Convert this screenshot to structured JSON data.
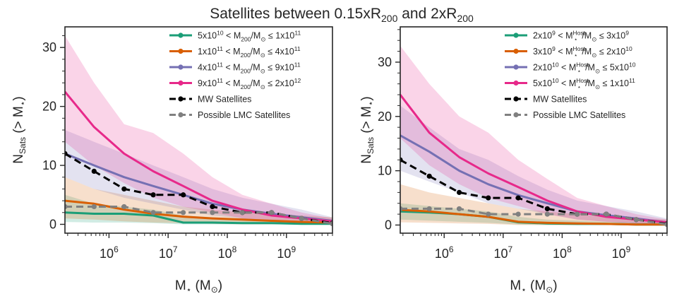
{
  "suptitle": {
    "main": "Satellites between 0.15xR",
    "sub1": "200",
    "mid": " and 2xR",
    "sub2": "200"
  },
  "colors": {
    "green": "#1b9e77",
    "orange": "#d95f02",
    "purple": "#7570b3",
    "pink": "#e7298a",
    "black": "#000000",
    "grey": "#808080"
  },
  "chart_data": [
    {
      "type": "line",
      "panel": "left",
      "xscale": "log",
      "xlim": [
        180000,
        6000000000
      ],
      "ylim": [
        -1.5,
        33.5
      ],
      "xticks": [
        {
          "value": 1000000,
          "base": "10",
          "exp": "6"
        },
        {
          "value": 10000000,
          "base": "10",
          "exp": "7"
        },
        {
          "value": 100000000,
          "base": "10",
          "exp": "8"
        },
        {
          "value": 1000000000,
          "base": "10",
          "exp": "9"
        }
      ],
      "yticks": [
        0,
        10,
        20,
        30
      ],
      "xlabel": {
        "pre": "M",
        "sub": "⋆",
        "post": " (M",
        "sub2": "⊙",
        "post2": ")"
      },
      "ylabel": {
        "pre": "N",
        "sub": "Sats",
        "post": " (> M",
        "sub2": "⋆",
        "post2": ")"
      },
      "legend_position": "top-right",
      "x": [
        180000,
        560000,
        1800000,
        5600000,
        18000000,
        56000000,
        180000000,
        560000000,
        1800000000,
        6000000000
      ],
      "series": [
        {
          "name": "5x10^10 < M200/Msun <= 1x10^11",
          "legend": {
            "a": "5x10",
            "ae": "10",
            "m": " < M",
            "ms": "200",
            "r": "/M",
            "rs": "⊙",
            "le": " ≤ 1x10",
            "be": "11"
          },
          "color": "#1b9e77",
          "dash": "solid",
          "marker": false,
          "values": [
            2,
            1.8,
            1.8,
            1.5,
            0.3,
            0.3,
            0.2,
            0.2,
            0.1,
            0.1
          ],
          "upper": [
            5,
            3.5,
            3,
            2.5,
            1.5,
            1.2,
            1,
            0.8,
            0.6,
            0.5
          ],
          "lower": [
            0.4,
            0.3,
            0.3,
            0.2,
            0,
            0,
            0,
            0,
            0,
            0
          ]
        },
        {
          "name": "1x10^11 < M200/Msun <= 4x10^11",
          "legend": {
            "a": "1x10",
            "ae": "11",
            "m": " < M",
            "ms": "200",
            "r": "/M",
            "rs": "⊙",
            "le": " ≤ 4x10",
            "be": "11"
          },
          "color": "#d95f02",
          "dash": "solid",
          "marker": false,
          "values": [
            4,
            3.5,
            2.5,
            1.8,
            1.3,
            1,
            0.8,
            0.6,
            0.4,
            0.3
          ],
          "upper": [
            8,
            6,
            5,
            4,
            3,
            2.5,
            2,
            1.8,
            1.5,
            1.2
          ],
          "lower": [
            1,
            0.8,
            0.5,
            0.3,
            0.2,
            0.1,
            0,
            0,
            0,
            0
          ]
        },
        {
          "name": "4x10^11 < M200/Msun <= 9x10^11",
          "legend": {
            "a": "4x10",
            "ae": "11",
            "m": " < M",
            "ms": "200",
            "r": "/M",
            "rs": "⊙",
            "le": " ≤ 9x10",
            "be": "11"
          },
          "color": "#7570b3",
          "dash": "solid",
          "marker": false,
          "values": [
            12,
            10,
            8,
            6.5,
            5,
            3.5,
            2.5,
            1.8,
            1.2,
            0.6
          ],
          "upper": [
            16,
            14,
            12,
            10,
            8,
            6,
            4.5,
            3.5,
            2.5,
            1.2
          ],
          "lower": [
            8,
            6,
            4.5,
            3.5,
            2.5,
            1.5,
            1,
            0.5,
            0.2,
            0
          ]
        },
        {
          "name": "9x10^11 < M200/Msun <= 2x10^12",
          "legend": {
            "a": "9x10",
            "ae": "11",
            "m": " < M",
            "ms": "200",
            "r": "/M",
            "rs": "⊙",
            "le": " ≤ 2x10",
            "be": "12"
          },
          "color": "#e7298a",
          "dash": "solid",
          "marker": false,
          "values": [
            22.5,
            16.5,
            12,
            9,
            6.5,
            4,
            2.5,
            1.5,
            1,
            0.5
          ],
          "upper": [
            32,
            24,
            17,
            15.5,
            12,
            8,
            5,
            3.5,
            2,
            1
          ],
          "lower": [
            14,
            10,
            7,
            4.5,
            3,
            2,
            1,
            0.6,
            0.3,
            0
          ]
        },
        {
          "name": "MW Satellites",
          "legend": {
            "a": "MW Satellites"
          },
          "color": "#000000",
          "dash": "dashed",
          "marker": true,
          "values": [
            12,
            9,
            6,
            5,
            5,
            3,
            2,
            2,
            1,
            0.2
          ]
        },
        {
          "name": "Possible LMC Satellites",
          "legend": {
            "a": "Possible LMC Satellites"
          },
          "color": "#808080",
          "dash": "dashed",
          "marker": true,
          "values": [
            3,
            3,
            3,
            2,
            2,
            2,
            2,
            2,
            1,
            0.1
          ]
        }
      ]
    },
    {
      "type": "line",
      "panel": "right",
      "xscale": "log",
      "xlim": [
        180000,
        6000000000
      ],
      "ylim": [
        -1.5,
        36.5
      ],
      "xticks": [
        {
          "value": 1000000,
          "base": "10",
          "exp": "6"
        },
        {
          "value": 10000000,
          "base": "10",
          "exp": "7"
        },
        {
          "value": 100000000,
          "base": "10",
          "exp": "8"
        },
        {
          "value": 1000000000,
          "base": "10",
          "exp": "9"
        }
      ],
      "yticks": [
        0,
        10,
        20,
        30
      ],
      "xlabel": {
        "pre": "M",
        "sub": "⋆",
        "post": " (M",
        "sub2": "⊙",
        "post2": ")"
      },
      "ylabel": {
        "pre": "N",
        "sub": "Sats",
        "post": " (> M",
        "sub2": "⋆",
        "post2": ")"
      },
      "legend_position": "top-right",
      "x": [
        180000,
        560000,
        1800000,
        5600000,
        18000000,
        56000000,
        180000000,
        560000000,
        1800000000,
        6000000000
      ],
      "series": [
        {
          "name": "2x10^9 < M*Host/Msun <= 3x10^9",
          "legend": {
            "a": "2x10",
            "ae": "9",
            "m": " < M",
            "ms": "⋆",
            "mh": "Host",
            "r": "/M",
            "rs": "⊙",
            "le": " ≤ 3x10",
            "be": "9"
          },
          "color": "#1b9e77",
          "dash": "solid",
          "marker": false,
          "values": [
            2.5,
            2.3,
            2,
            1.5,
            0.5,
            0.3,
            0.2,
            0.2,
            0.1,
            0.1
          ],
          "upper": [
            4,
            3.5,
            3,
            2.5,
            1.5,
            1,
            0.8,
            0.6,
            0.5,
            0.4
          ],
          "lower": [
            1,
            0.8,
            0.6,
            0.4,
            0.1,
            0,
            0,
            0,
            0,
            0
          ]
        },
        {
          "name": "3x10^9 < M*Host/Msun <= 2x10^10",
          "legend": {
            "a": "3x10",
            "ae": "9",
            "m": " < M",
            "ms": "⋆",
            "mh": "Host",
            "r": "/M",
            "rs": "⊙",
            "le": " ≤ 2x10",
            "be": "10"
          },
          "color": "#d95f02",
          "dash": "solid",
          "marker": false,
          "values": [
            2.8,
            2.5,
            2,
            1.5,
            0.6,
            0.4,
            0.3,
            0.2,
            0.1,
            0.1
          ],
          "upper": [
            7.5,
            6,
            5,
            4,
            3,
            2.5,
            2,
            1.5,
            1.2,
            1
          ],
          "lower": [
            0.5,
            0.4,
            0.3,
            0.2,
            0,
            0,
            0,
            0,
            0,
            0
          ]
        },
        {
          "name": "2x10^10 < M*Host/Msun <= 5x10^10",
          "legend": {
            "a": "2x10",
            "ae": "10",
            "m": " < M",
            "ms": "⋆",
            "mh": "Host",
            "r": "/M",
            "rs": "⊙",
            "le": " ≤ 5x10",
            "be": "10"
          },
          "color": "#7570b3",
          "dash": "solid",
          "marker": false,
          "values": [
            16.5,
            13.5,
            10,
            7.5,
            5.5,
            4,
            2.5,
            1.8,
            1.2,
            0.5
          ],
          "upper": [
            22,
            18,
            14,
            12,
            9,
            6.5,
            4.5,
            3.5,
            2.5,
            1.2
          ],
          "lower": [
            10,
            8,
            6,
            4,
            3,
            2,
            1,
            0.6,
            0.3,
            0
          ]
        },
        {
          "name": "5x10^10 < M*Host/Msun <= 1x10^11",
          "legend": {
            "a": "5x10",
            "ae": "10",
            "m": " < M",
            "ms": "⋆",
            "mh": "Host",
            "r": "/M",
            "rs": "⊙",
            "le": " ≤ 1x10",
            "be": "11"
          },
          "color": "#e7298a",
          "dash": "solid",
          "marker": false,
          "values": [
            24,
            17,
            12.5,
            9.5,
            7,
            4.5,
            2.5,
            1.5,
            1,
            0.5
          ],
          "upper": [
            33,
            26,
            20,
            17,
            12,
            8.5,
            5,
            3.5,
            2,
            1
          ],
          "lower": [
            16,
            11,
            7.5,
            5,
            3.5,
            2,
            1,
            0.6,
            0.3,
            0
          ]
        },
        {
          "name": "MW Satellites",
          "legend": {
            "a": "MW Satellites"
          },
          "color": "#000000",
          "dash": "dashed",
          "marker": true,
          "values": [
            12,
            9,
            6,
            5,
            5,
            3,
            2,
            2,
            1,
            0.2
          ]
        },
        {
          "name": "Possible LMC Satellites",
          "legend": {
            "a": "Possible LMC Satellites"
          },
          "color": "#808080",
          "dash": "dashed",
          "marker": true,
          "values": [
            3,
            3,
            3,
            2,
            2,
            2,
            2,
            2,
            1,
            0.1
          ]
        }
      ]
    }
  ]
}
